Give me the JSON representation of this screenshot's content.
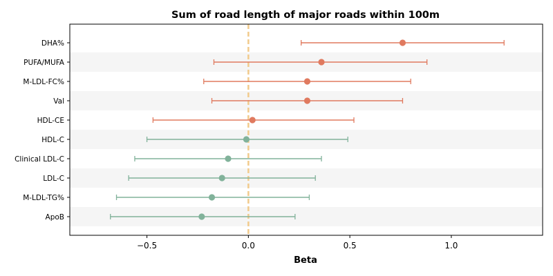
{
  "chart_data": {
    "type": "forest",
    "title": "Sum of road length of major roads within 100m",
    "xlabel": "Beta",
    "xlim": [
      -0.88,
      1.45
    ],
    "xticks": [
      -0.5,
      0.0,
      0.5,
      1.0
    ],
    "xtick_labels": [
      "−0.5",
      "0.0",
      "0.5",
      "1.0"
    ],
    "reference_line": 0.0,
    "colors": {
      "positive": "#E07A5F",
      "negative": "#81B29A",
      "reference": "#F2CC8F",
      "band": "#f5f5f5"
    },
    "rows": [
      {
        "label": "DHA%",
        "beta": 0.76,
        "lower": 0.26,
        "upper": 1.26
      },
      {
        "label": "PUFA/MUFA",
        "beta": 0.36,
        "lower": -0.17,
        "upper": 0.88
      },
      {
        "label": "M-LDL-FC%",
        "beta": 0.29,
        "lower": -0.22,
        "upper": 0.8
      },
      {
        "label": "Val",
        "beta": 0.29,
        "lower": -0.18,
        "upper": 0.76
      },
      {
        "label": "HDL-CE",
        "beta": 0.02,
        "lower": -0.47,
        "upper": 0.52
      },
      {
        "label": "HDL-C",
        "beta": -0.01,
        "lower": -0.5,
        "upper": 0.49
      },
      {
        "label": "Clinical LDL-C",
        "beta": -0.1,
        "lower": -0.56,
        "upper": 0.36
      },
      {
        "label": "LDL-C",
        "beta": -0.13,
        "lower": -0.59,
        "upper": 0.33
      },
      {
        "label": "M-LDL-TG%",
        "beta": -0.18,
        "lower": -0.65,
        "upper": 0.3
      },
      {
        "label": "ApoB",
        "beta": -0.23,
        "lower": -0.68,
        "upper": 0.23
      }
    ]
  }
}
